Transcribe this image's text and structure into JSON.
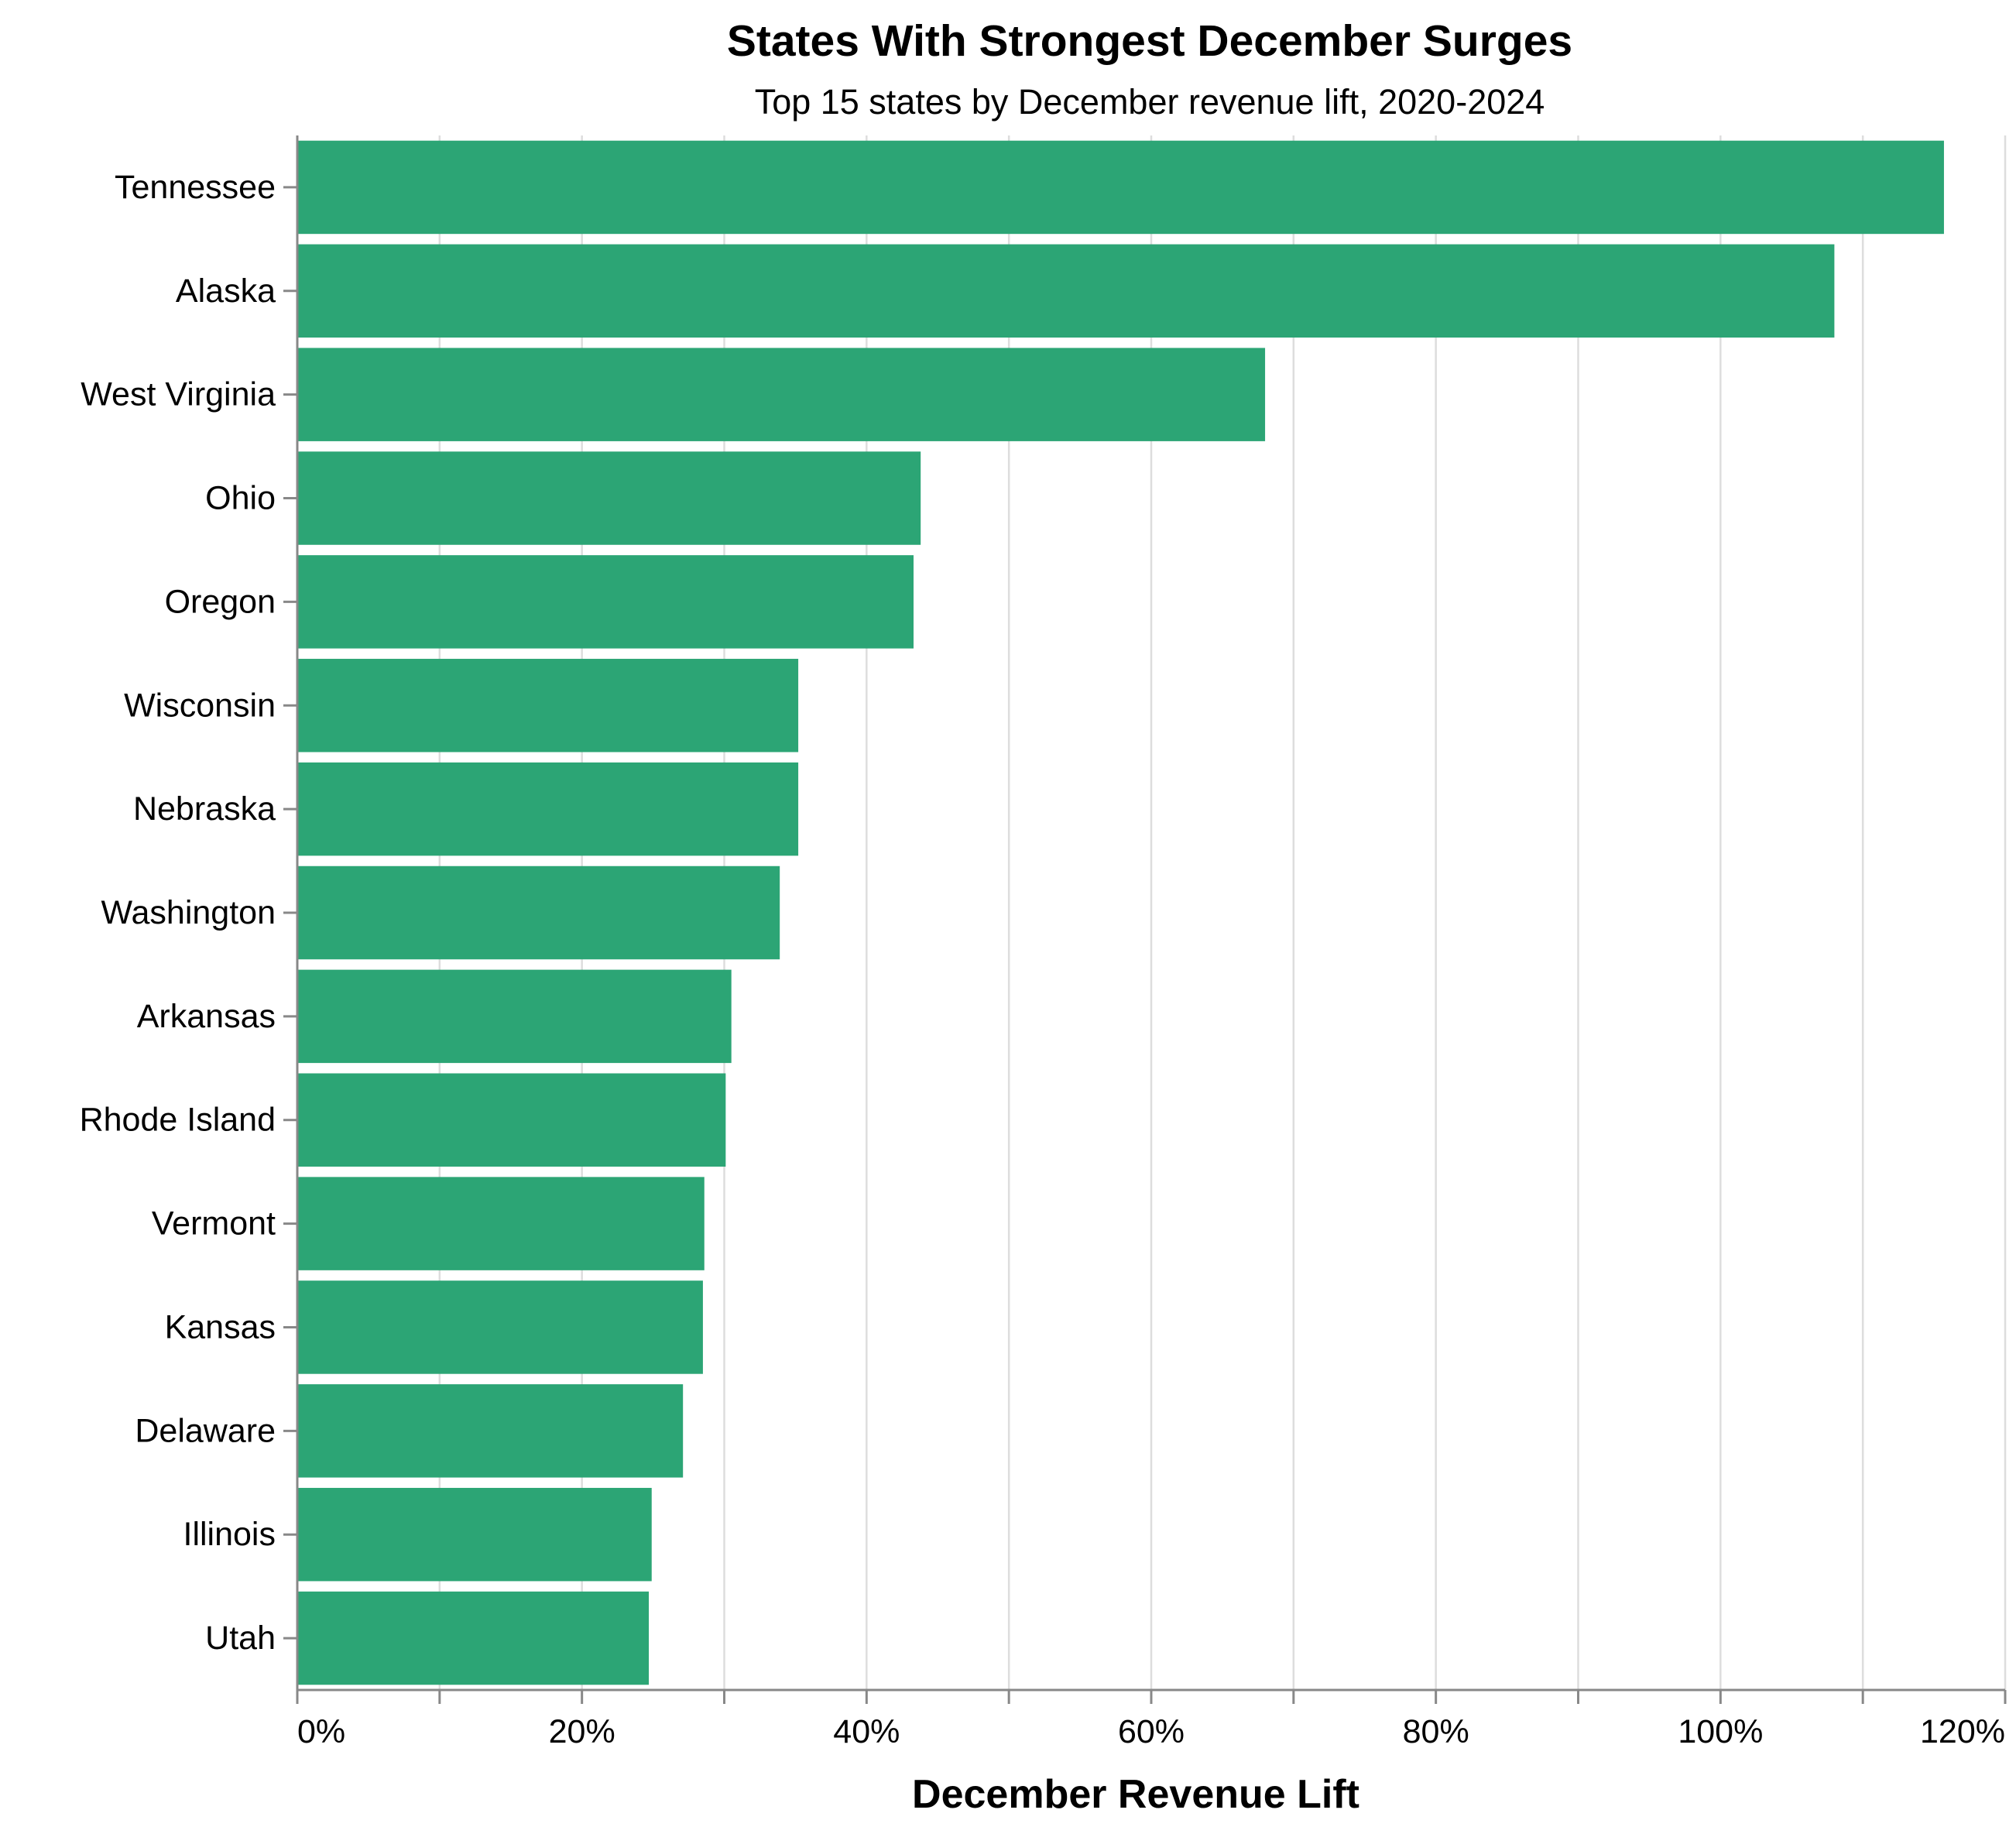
{
  "chart_data": {
    "type": "bar",
    "orientation": "horizontal",
    "title": "States With Strongest December Surges",
    "subtitle": "Top 15 states by December revenue lift, 2020-2024",
    "xlabel": "December Revenue Lift",
    "ylabel": "",
    "xlim": [
      0,
      120
    ],
    "x_ticks": [
      0,
      20,
      40,
      60,
      80,
      100,
      120
    ],
    "x_tick_labels": [
      "0%",
      "20%",
      "40%",
      "60%",
      "80%",
      "100%",
      "120%"
    ],
    "grid": true,
    "bar_color": "#2ca575",
    "categories": [
      "Tennessee",
      "Alaska",
      "West Virginia",
      "Ohio",
      "Oregon",
      "Wisconsin",
      "Nebraska",
      "Washington",
      "Arkansas",
      "Rhode Island",
      "Vermont",
      "Kansas",
      "Delaware",
      "Illinois",
      "Utah"
    ],
    "values": [
      115.7,
      108.0,
      68.0,
      43.8,
      43.3,
      35.2,
      35.2,
      33.9,
      30.5,
      30.1,
      28.6,
      28.5,
      27.1,
      24.9,
      24.7
    ]
  }
}
